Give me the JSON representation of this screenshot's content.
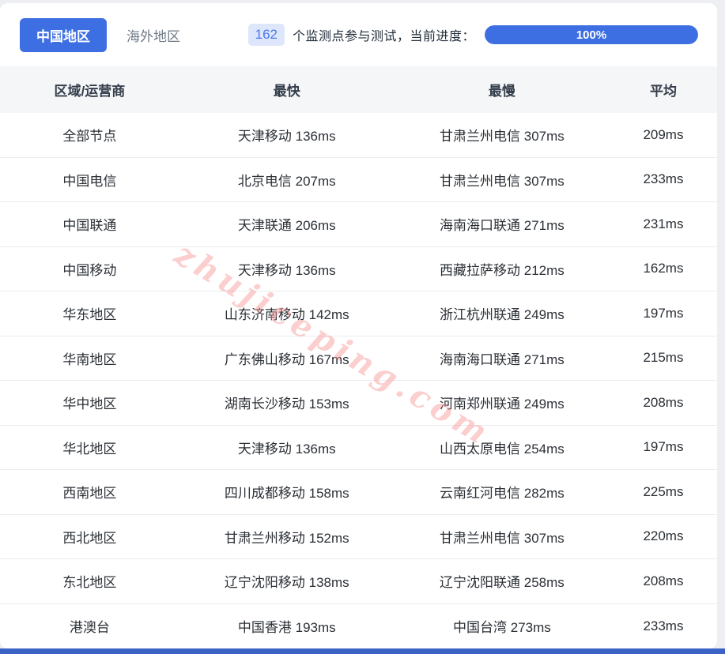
{
  "tabs": [
    {
      "label": "中国地区",
      "active": true
    },
    {
      "label": "海外地区",
      "active": false
    }
  ],
  "monitor": {
    "count": "162",
    "text": "个监测点参与测试，当前进度：",
    "progress_label": "100%",
    "progress_percent": 100
  },
  "table": {
    "headers": [
      "区域/运营商",
      "最快",
      "最慢",
      "平均"
    ],
    "rows": [
      [
        "全部节点",
        "天津移动 136ms",
        "甘肃兰州电信 307ms",
        "209ms"
      ],
      [
        "中国电信",
        "北京电信 207ms",
        "甘肃兰州电信 307ms",
        "233ms"
      ],
      [
        "中国联通",
        "天津联通 206ms",
        "海南海口联通 271ms",
        "231ms"
      ],
      [
        "中国移动",
        "天津移动 136ms",
        "西藏拉萨移动 212ms",
        "162ms"
      ],
      [
        "华东地区",
        "山东济南移动 142ms",
        "浙江杭州联通 249ms",
        "197ms"
      ],
      [
        "华南地区",
        "广东佛山移动 167ms",
        "海南海口联通 271ms",
        "215ms"
      ],
      [
        "华中地区",
        "湖南长沙移动 153ms",
        "河南郑州联通 249ms",
        "208ms"
      ],
      [
        "华北地区",
        "天津移动 136ms",
        "山西太原电信 254ms",
        "197ms"
      ],
      [
        "西南地区",
        "四川成都移动 158ms",
        "云南红河电信 282ms",
        "225ms"
      ],
      [
        "西北地区",
        "甘肃兰州移动 152ms",
        "甘肃兰州电信 307ms",
        "220ms"
      ],
      [
        "东北地区",
        "辽宁沈阳移动 138ms",
        "辽宁沈阳联通 258ms",
        "208ms"
      ],
      [
        "港澳台",
        "中国香港 193ms",
        "中国台湾 273ms",
        "233ms"
      ]
    ]
  },
  "watermark": "zhujiceping.com",
  "colors": {
    "accent_blue": "#3d6fe3",
    "badge_bg": "#dee6fb",
    "badge_text": "#4b79ea",
    "header_bg": "#f4f6f8",
    "watermark_pink": "#f89494",
    "bottom_bar_blue": "#3c62c6"
  }
}
